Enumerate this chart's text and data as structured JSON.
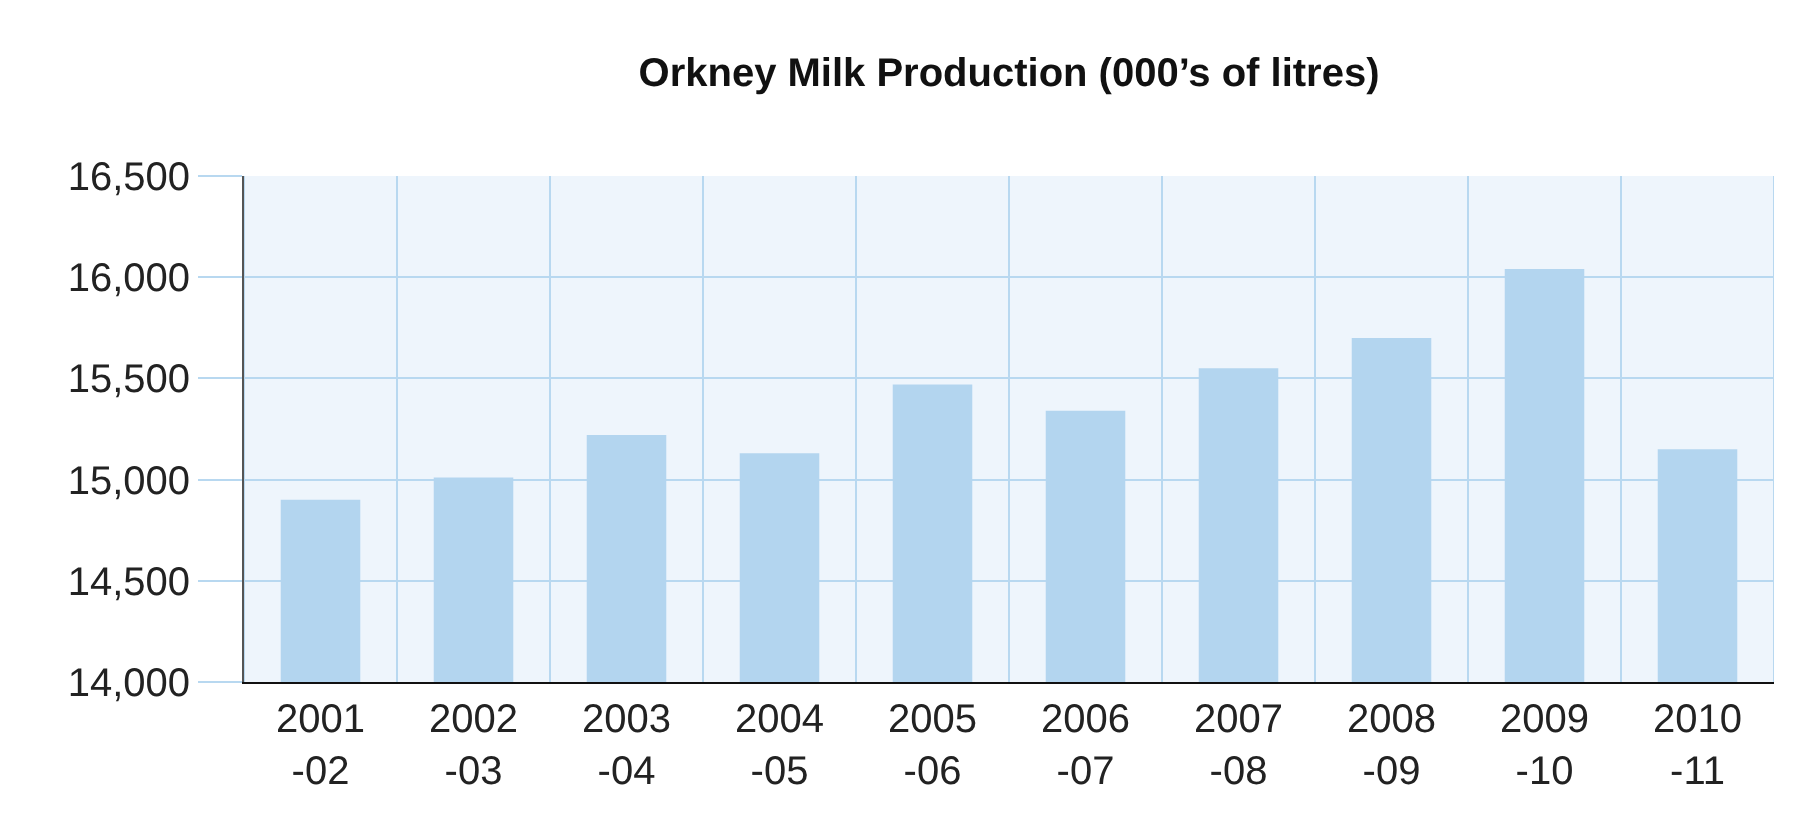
{
  "chart_data": {
    "type": "bar",
    "title": "Orkney Milk Production (000’s of litres)",
    "categories": [
      "2001\n-02",
      "2002\n-03",
      "2003\n-04",
      "2004\n-05",
      "2005\n-06",
      "2006\n-07",
      "2007\n-08",
      "2008\n-09",
      "2009\n-10",
      "2010\n-11"
    ],
    "values": [
      14900,
      15010,
      15220,
      15130,
      15470,
      15340,
      15550,
      15700,
      16040,
      15150
    ],
    "color": "#b3d5ef",
    "ylim": [
      14000,
      16500
    ],
    "yticks": [
      {
        "value": 14000,
        "label": "14,000"
      },
      {
        "value": 14500,
        "label": "14,500"
      },
      {
        "value": 15000,
        "label": "15,000"
      },
      {
        "value": 15500,
        "label": "15,500"
      },
      {
        "value": 16000,
        "label": "16,000"
      },
      {
        "value": 16500,
        "label": "16,500"
      }
    ],
    "grid": true
  }
}
